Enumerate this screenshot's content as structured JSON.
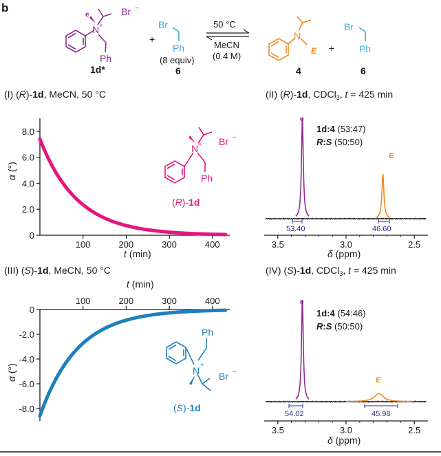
{
  "panel_letter": "b",
  "colors": {
    "purple": "#8E2C8E",
    "blue": "#3BA7DF",
    "orange": "#F08A24",
    "magenta": "#E5167F",
    "steel": "#1E7FC0",
    "ink": "#1a1a1a",
    "navy": "#2b2b8f"
  },
  "scheme": {
    "reactant_label": "1d*",
    "reactant_e": "e",
    "reactant_bromide": "Br",
    "reactant_charge": "+",
    "reactant_minus": "−",
    "ph": "Ph",
    "reagent_br": "Br",
    "reagent_ph": "Ph",
    "reagent_equiv": "(8 equiv)",
    "reagent_label": "6",
    "plus1": "+",
    "plus2": "+",
    "cond_temp": "50 °C",
    "cond_solvent": "MeCN",
    "cond_conc": "(0.4 M)",
    "product_E": "E",
    "product_label": "4",
    "byproduct_br": "Br",
    "byproduct_ph": "Ph",
    "byproduct_label": "6"
  },
  "panels": {
    "p1": {
      "roman": "(I) ",
      "config": "R",
      "suffix1": ")-",
      "cmpd": "1d",
      "rest": ", MeCN, 50 °C"
    },
    "p2": {
      "roman": "(II) ",
      "config": "R",
      "cmpd": "1d",
      "solvent": ", CDCl",
      "sub": "3",
      "sep": ", ",
      "t": "t",
      "time": " = 425 min"
    },
    "p3": {
      "roman": "(III) ",
      "config": "S",
      "cmpd": "1d",
      "rest": ", MeCN, 50 °C"
    },
    "p4": {
      "roman": "(IV) ",
      "config": "S",
      "cmpd": "1d",
      "solvent": ", CDCl",
      "sub": "3",
      "sep": ", ",
      "t": "t",
      "time": " = 425 min"
    }
  },
  "structure_labels": {
    "R_label_config": "R",
    "R_label_cmpd": "1d",
    "S_label_config": "S",
    "S_label_cmpd": "1d",
    "br": "Br",
    "minus": "−",
    "plus": "+",
    "ph": "Ph"
  },
  "chart_data": [
    {
      "type": "line",
      "name": "(R)-1d optical rotation decay",
      "title": "(I) (R)-1d, MeCN, 50 °C",
      "xlabel": "t (min)",
      "ylabel": "α (°)",
      "xlim": [
        0,
        440
      ],
      "ylim": [
        0,
        9
      ],
      "xticks": [
        "100",
        "200",
        "300",
        "400"
      ],
      "yticks": [
        "0",
        "2.0",
        "4.0",
        "6.0",
        "8.0"
      ],
      "series": [
        {
          "name": "(R)-1d",
          "color": "#E5167F",
          "y0": 7.4,
          "k": 0.0115,
          "t_end": 430
        }
      ]
    },
    {
      "type": "line",
      "name": "(S)-1d optical rotation decay",
      "title": "(III) (S)-1d, MeCN, 50 °C",
      "xlabel": "t (min)",
      "ylabel": "α (°)",
      "xlim": [
        0,
        440
      ],
      "ylim": [
        -9,
        0
      ],
      "xticks": [
        "100",
        "200",
        "300",
        "400"
      ],
      "yticks": [
        "0",
        "-2.0",
        "-4.0",
        "-6.0",
        "-8.0"
      ],
      "series": [
        {
          "name": "(S)-1d",
          "color": "#1E7FC0",
          "y0": -8.6,
          "k": 0.0115,
          "t_end": 430
        }
      ]
    },
    {
      "type": "line",
      "name": "(II) NMR spectrum",
      "xlabel": "δ (ppm)",
      "xlim": [
        3.6,
        2.4
      ],
      "xticks": [
        "3.5",
        "3.0",
        "2.5"
      ],
      "peaks": [
        {
          "label": "e",
          "ppm": 3.32,
          "height": 1.0,
          "width": 0.008,
          "color": "#8E2C8E"
        },
        {
          "label": "E",
          "ppm": 2.73,
          "height": 0.44,
          "width": 0.009,
          "color": "#F08A24"
        }
      ],
      "integrals": [
        "53.40",
        "46.60"
      ],
      "ratio_line1_a": "1d",
      "ratio_line1_b": ":",
      "ratio_line1_c": "4",
      "ratio_line1_d": " (53:47)",
      "ratio_line2_a": "R",
      "ratio_line2_b": ":",
      "ratio_line2_c": "S",
      "ratio_line2_d": " (50:50)"
    },
    {
      "type": "line",
      "name": "(IV) NMR spectrum",
      "xlabel": "δ (ppm)",
      "xlim": [
        3.6,
        2.4
      ],
      "xticks": [
        "3.5",
        "3.0",
        "2.5"
      ],
      "peaks": [
        {
          "label": "e",
          "ppm": 3.32,
          "height": 1.0,
          "width": 0.008,
          "color": "#8E2C8E"
        },
        {
          "label": "E",
          "ppm": 2.76,
          "height": 0.08,
          "width": 0.04,
          "color": "#F08A24"
        }
      ],
      "integrals": [
        "54.02",
        "45.98"
      ],
      "ratio_line1_a": "1d",
      "ratio_line1_b": ":",
      "ratio_line1_c": "4",
      "ratio_line1_d": " (54:46)",
      "ratio_line2_a": "R",
      "ratio_line2_b": ":",
      "ratio_line2_c": "S",
      "ratio_line2_d": " (50:50)"
    }
  ]
}
